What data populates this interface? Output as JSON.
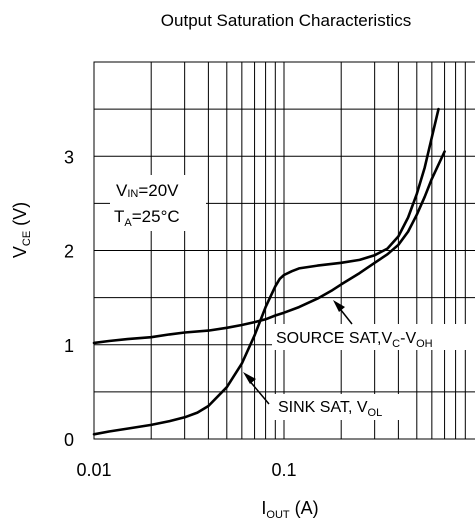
{
  "chart_data": {
    "type": "line",
    "title": "Output Saturation Characteristics",
    "xlabel": {
      "main": "I",
      "sub": "OUT",
      "unit": " (A)"
    },
    "ylabel": {
      "main": "V",
      "sub": "CE",
      "unit": " (V)"
    },
    "x_scale": "log",
    "xlim": [
      0.01,
      1
    ],
    "ylim": [
      0,
      4
    ],
    "x_ticks": [
      {
        "value": 0.01,
        "label": "0.01"
      },
      {
        "value": 0.1,
        "label": "0.1"
      }
    ],
    "y_ticks": [
      {
        "value": 0,
        "label": "0"
      },
      {
        "value": 1,
        "label": "1"
      },
      {
        "value": 2,
        "label": "2"
      },
      {
        "value": 3,
        "label": "3"
      }
    ],
    "grid": true,
    "conditions": [
      {
        "main": "V",
        "sub": "IN",
        "rest": "=20V"
      },
      {
        "main": "T",
        "sub": "A",
        "rest": "=25°C"
      }
    ],
    "series": [
      {
        "name": "SOURCE SAT",
        "label": {
          "text": "SOURCE SAT,V",
          "sub1": "C",
          "mid": "-V",
          "sub2": "OH"
        },
        "x": [
          0.01,
          0.012,
          0.015,
          0.02,
          0.025,
          0.03,
          0.04,
          0.05,
          0.06,
          0.07,
          0.08,
          0.09,
          0.1,
          0.12,
          0.15,
          0.18,
          0.2,
          0.25,
          0.3,
          0.35,
          0.4,
          0.45,
          0.5,
          0.55,
          0.6,
          0.7
        ],
        "y": [
          1.02,
          1.04,
          1.06,
          1.08,
          1.11,
          1.13,
          1.15,
          1.18,
          1.21,
          1.24,
          1.27,
          1.31,
          1.34,
          1.4,
          1.49,
          1.58,
          1.64,
          1.76,
          1.87,
          1.96,
          2.06,
          2.2,
          2.38,
          2.57,
          2.76,
          3.05
        ]
      },
      {
        "name": "SINK SAT",
        "label": {
          "text": "SINK SAT, V",
          "sub1": "OL"
        },
        "x": [
          0.01,
          0.012,
          0.015,
          0.02,
          0.025,
          0.03,
          0.035,
          0.04,
          0.05,
          0.06,
          0.07,
          0.08,
          0.09,
          0.095,
          0.1,
          0.11,
          0.12,
          0.15,
          0.2,
          0.25,
          0.3,
          0.35,
          0.4,
          0.45,
          0.5,
          0.55,
          0.6,
          0.65
        ],
        "y": [
          0.05,
          0.08,
          0.11,
          0.15,
          0.19,
          0.23,
          0.28,
          0.35,
          0.55,
          0.8,
          1.1,
          1.4,
          1.62,
          1.7,
          1.74,
          1.78,
          1.81,
          1.84,
          1.87,
          1.9,
          1.95,
          2.02,
          2.15,
          2.35,
          2.6,
          2.88,
          3.2,
          3.5
        ]
      }
    ]
  }
}
